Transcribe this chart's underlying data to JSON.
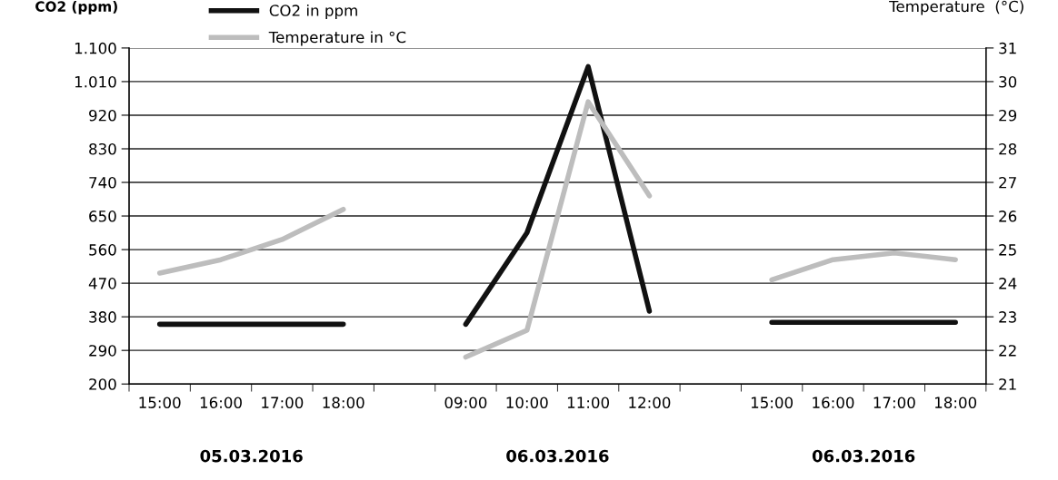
{
  "chart_data": {
    "type": "line",
    "ylabel": "CO2 (ppm)",
    "y2label": "Temperature  (°C)",
    "categories": [
      "15:00",
      "16:00",
      "17:00",
      "18:00",
      null,
      "09:00",
      "10:00",
      "11:00",
      "12:00",
      null,
      "15:00",
      "16:00",
      "17:00",
      "18:00"
    ],
    "series": [
      {
        "name": "CO2 in ppm",
        "color": "#111111",
        "values": [
          360,
          360,
          360,
          360,
          null,
          360,
          605,
          1050,
          395,
          null,
          365,
          365,
          365,
          365
        ]
      },
      {
        "name": "Temperature in °C",
        "color": "#bdbdbd",
        "axis": "y2",
        "values": [
          24.3,
          24.7,
          25.3,
          26.2,
          null,
          21.8,
          22.6,
          29.4,
          26.6,
          null,
          24.1,
          24.7,
          24.9,
          24.7
        ]
      }
    ],
    "ylim": [
      200,
      1100
    ],
    "yticks": [
      200,
      290,
      380,
      470,
      560,
      650,
      740,
      830,
      920,
      {
        "value": 1010,
        "label": "1.010"
      },
      {
        "value": 1100,
        "label": "1.100"
      }
    ],
    "y2lim": [
      21,
      31
    ],
    "y2ticks": [
      21,
      22,
      23,
      24,
      25,
      26,
      27,
      28,
      29,
      30,
      31
    ],
    "grid": "y",
    "legend": "top left",
    "marker": "none",
    "line_style": "solid",
    "annotations": [
      "05.03.2016",
      "06.03.2016",
      "06.03.2016"
    ]
  }
}
